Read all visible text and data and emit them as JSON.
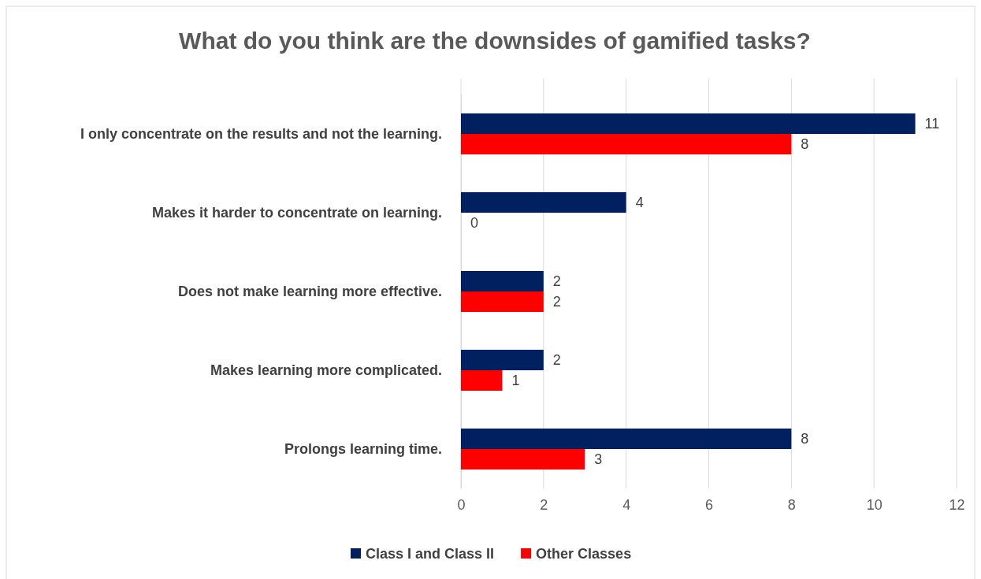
{
  "chart_data": {
    "type": "bar",
    "orientation": "horizontal",
    "title": "What do you think are the downsides of gamified tasks?",
    "categories": [
      "I only concentrate on the results and not the learning.",
      "Makes it harder to concentrate on learning.",
      "Does not make learning more effective.",
      "Makes learning more complicated.",
      "Prolongs learning time."
    ],
    "series": [
      {
        "name": "Class I and Class II",
        "color": "#002060",
        "values": [
          11,
          4,
          2,
          2,
          8
        ]
      },
      {
        "name": "Other Classes",
        "color": "#ff0000",
        "values": [
          8,
          0,
          2,
          1,
          3
        ]
      }
    ],
    "xlim": [
      0,
      12
    ],
    "xticks": [
      0,
      2,
      4,
      6,
      8,
      10,
      12
    ],
    "grid": "x",
    "legend": "bottom",
    "data_labels": true
  }
}
